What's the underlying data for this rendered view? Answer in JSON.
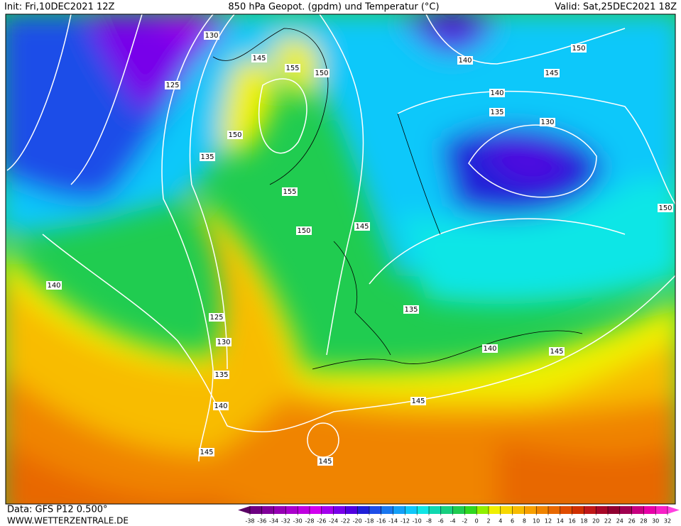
{
  "header": {
    "init": "Init: Fri,10DEC2021 12Z",
    "title": "850 hPa Geopot. (gpdm) und Temperatur (°C)",
    "valid": "Valid: Sat,25DEC2021 18Z"
  },
  "footer": {
    "data_source": "Data: GFS P12 0.500°",
    "website": "WWW.WETTERZENTRALE.DE"
  },
  "colorbar": {
    "labels": [
      -38,
      -36,
      -34,
      -32,
      -30,
      -28,
      -26,
      -24,
      -22,
      -20,
      -18,
      -16,
      -14,
      -12,
      -10,
      -8,
      -6,
      -4,
      -2,
      0,
      2,
      4,
      6,
      8,
      10,
      12,
      14,
      16,
      18,
      20,
      22,
      24,
      26,
      28,
      30,
      32
    ],
    "colors": [
      "#5a0064",
      "#6e0082",
      "#82009a",
      "#9600b4",
      "#aa00cc",
      "#c000e0",
      "#d200f0",
      "#a400ee",
      "#7800ea",
      "#5000e0",
      "#2020d8",
      "#1e4ee8",
      "#1a78f0",
      "#14a0f8",
      "#10c8fa",
      "#10e6e6",
      "#10d8b0",
      "#18d080",
      "#20cc50",
      "#30d820",
      "#90f000",
      "#f0f000",
      "#f8d800",
      "#f8bc00",
      "#f8a000",
      "#f08400",
      "#e86800",
      "#e04c00",
      "#d03000",
      "#c01818",
      "#a80828",
      "#900030",
      "#a00050",
      "#c80080",
      "#e800a8",
      "#f820c8",
      "#ff40e0"
    ]
  },
  "contour_labels": [
    130,
    145,
    155,
    150,
    125,
    150,
    135,
    155,
    150,
    145,
    140,
    150,
    145,
    140,
    135,
    130,
    150,
    140,
    125,
    130,
    135,
    140,
    145,
    145,
    145,
    140,
    145,
    135
  ]
}
